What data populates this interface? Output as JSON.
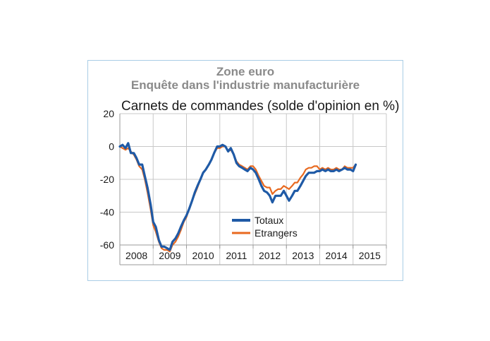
{
  "header": {
    "title_line1": "Zone euro",
    "title_line2": "Enquête dans l'industrie manufacturière"
  },
  "chart_data": {
    "type": "line",
    "title": "Carnets de commandes (solde d'opinion en %)",
    "xlabel": "",
    "ylabel": "",
    "ylim": [
      -60,
      20
    ],
    "yticks": [
      20,
      0,
      -20,
      -40,
      -60
    ],
    "year_labels": [
      "2008",
      "2009",
      "2010",
      "2011",
      "2012",
      "2013",
      "2014",
      "2015"
    ],
    "x_start": 2008,
    "x_end": 2016,
    "grid": true,
    "legend_position": "bottom-center",
    "series": [
      {
        "name": "Totaux",
        "color": "#1f5aa6",
        "x": [
          2008.0,
          2008.08,
          2008.17,
          2008.25,
          2008.33,
          2008.42,
          2008.5,
          2008.58,
          2008.67,
          2008.75,
          2008.83,
          2008.92,
          2009.0,
          2009.08,
          2009.17,
          2009.25,
          2009.33,
          2009.42,
          2009.5,
          2009.58,
          2009.67,
          2009.75,
          2009.83,
          2009.92,
          2010.0,
          2010.08,
          2010.17,
          2010.25,
          2010.33,
          2010.42,
          2010.5,
          2010.58,
          2010.67,
          2010.75,
          2010.83,
          2010.92,
          2011.0,
          2011.08,
          2011.17,
          2011.25,
          2011.33,
          2011.42,
          2011.5,
          2011.58,
          2011.67,
          2011.75,
          2011.83,
          2011.92,
          2012.0,
          2012.08,
          2012.17,
          2012.25,
          2012.33,
          2012.42,
          2012.5,
          2012.58,
          2012.67,
          2012.75,
          2012.83,
          2012.92,
          2013.0,
          2013.08,
          2013.17,
          2013.25,
          2013.33,
          2013.42,
          2013.5,
          2013.58,
          2013.67,
          2013.75,
          2013.83,
          2013.92,
          2014.0,
          2014.08,
          2014.17,
          2014.25,
          2014.33,
          2014.42,
          2014.5,
          2014.58,
          2014.67,
          2014.75,
          2014.83,
          2014.92,
          2015.0,
          2015.08
        ],
        "values": [
          0,
          1,
          -1,
          2,
          -4,
          -4,
          -7,
          -11,
          -11,
          -18,
          -25,
          -35,
          -46,
          -49,
          -57,
          -61,
          -61,
          -62,
          -63,
          -58,
          -56,
          -53,
          -49,
          -45,
          -42,
          -38,
          -33,
          -28,
          -24,
          -20,
          -16,
          -14,
          -11,
          -8,
          -4,
          0,
          0,
          1,
          0,
          -3,
          -1,
          -5,
          -10,
          -12,
          -13,
          -14,
          -15,
          -13,
          -14,
          -16,
          -20,
          -24,
          -27,
          -28,
          -30,
          -34,
          -30,
          -30,
          -30,
          -27,
          -30,
          -33,
          -30,
          -27,
          -27,
          -24,
          -21,
          -18,
          -16,
          -16,
          -16,
          -15,
          -15,
          -14,
          -15,
          -14,
          -15,
          -15,
          -14,
          -15,
          -14,
          -13,
          -14,
          -14,
          -15,
          -11
        ]
      },
      {
        "name": "Etrangers",
        "color": "#e8691f",
        "x": [
          2008.0,
          2008.08,
          2008.17,
          2008.25,
          2008.33,
          2008.42,
          2008.5,
          2008.58,
          2008.67,
          2008.75,
          2008.83,
          2008.92,
          2009.0,
          2009.08,
          2009.17,
          2009.25,
          2009.33,
          2009.42,
          2009.5,
          2009.58,
          2009.67,
          2009.75,
          2009.83,
          2009.92,
          2010.0,
          2010.08,
          2010.17,
          2010.25,
          2010.33,
          2010.42,
          2010.5,
          2010.58,
          2010.67,
          2010.75,
          2010.83,
          2010.92,
          2011.0,
          2011.08,
          2011.17,
          2011.25,
          2011.33,
          2011.42,
          2011.5,
          2011.58,
          2011.67,
          2011.75,
          2011.83,
          2011.92,
          2012.0,
          2012.08,
          2012.17,
          2012.25,
          2012.33,
          2012.42,
          2012.5,
          2012.58,
          2012.67,
          2012.75,
          2012.83,
          2012.92,
          2013.0,
          2013.08,
          2013.17,
          2013.25,
          2013.33,
          2013.42,
          2013.5,
          2013.58,
          2013.67,
          2013.75,
          2013.83,
          2013.92,
          2014.0,
          2014.08,
          2014.17,
          2014.25,
          2014.33,
          2014.42,
          2014.5,
          2014.58,
          2014.67,
          2014.75,
          2014.83,
          2014.92,
          2015.0,
          2015.08
        ],
        "values": [
          0,
          -1,
          -2,
          -1,
          -3,
          -5,
          -8,
          -12,
          -14,
          -20,
          -28,
          -38,
          -48,
          -52,
          -58,
          -62,
          -63,
          -63,
          -64,
          -60,
          -58,
          -55,
          -51,
          -46,
          -43,
          -38,
          -33,
          -29,
          -25,
          -20,
          -16,
          -14,
          -11,
          -8,
          -4,
          -1,
          -1,
          0,
          0,
          -3,
          -2,
          -5,
          -9,
          -11,
          -12,
          -13,
          -14,
          -12,
          -12,
          -14,
          -18,
          -21,
          -24,
          -25,
          -25,
          -29,
          -27,
          -26,
          -26,
          -24,
          -25,
          -26,
          -24,
          -22,
          -22,
          -19,
          -17,
          -14,
          -13,
          -13,
          -12,
          -12,
          -14,
          -13,
          -14,
          -13,
          -14,
          -14,
          -13,
          -14,
          -14,
          -12,
          -13,
          -13,
          -13,
          -11
        ]
      }
    ]
  }
}
